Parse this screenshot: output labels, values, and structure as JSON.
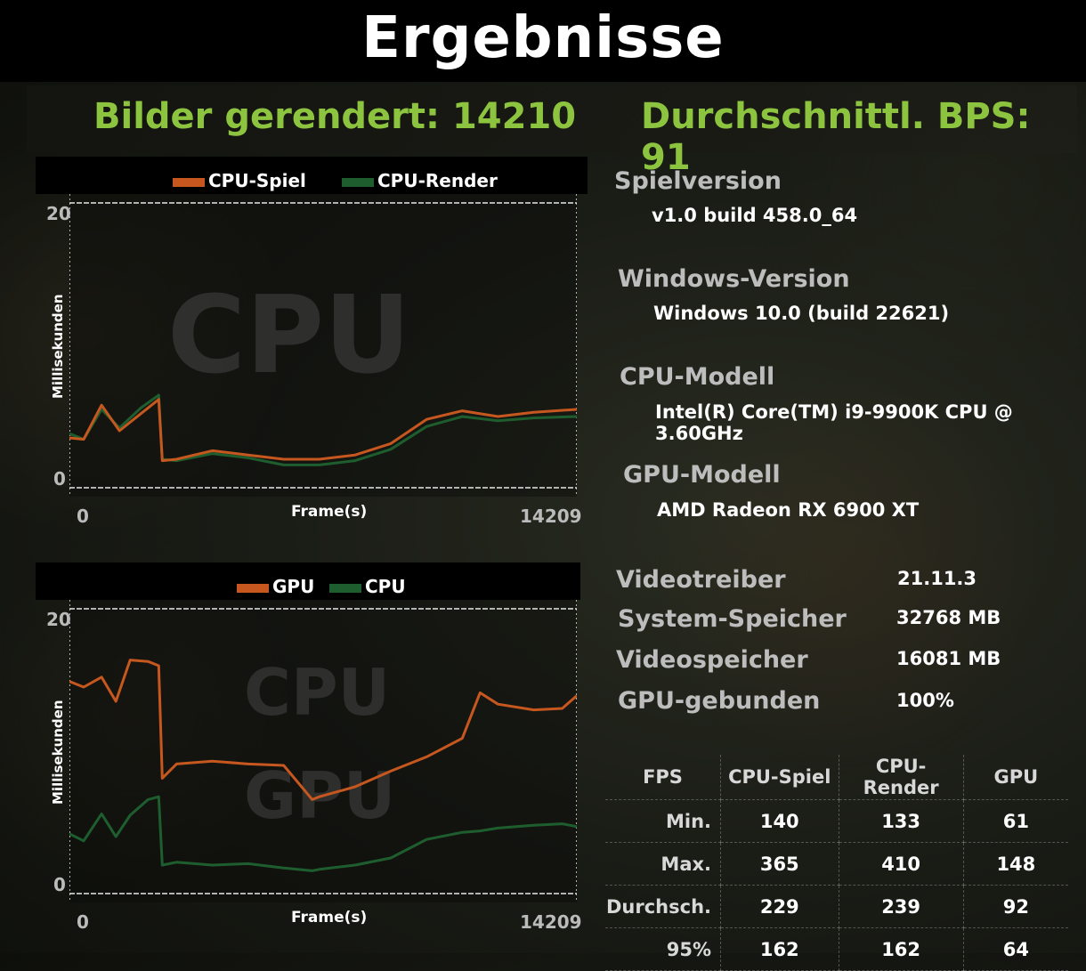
{
  "title": "Ergebnisse",
  "summary": {
    "frames_rendered": "Bilder gerendert: 14210",
    "avg_fps": "Durchschnittl. BPS: 91"
  },
  "colors": {
    "accent_green": "#8cc43f",
    "orange": "#c5571f",
    "dark_green": "#1e5e2e"
  },
  "chart1": {
    "legend": [
      "CPU-Spiel",
      "CPU-Render"
    ],
    "y_max": "20",
    "y_min": "0",
    "x_min": "0",
    "x_max": "14209",
    "xlabel": "Frame(s)",
    "ylabel": "Millisekunden",
    "watermark": "CPU"
  },
  "chart2": {
    "legend": [
      "GPU",
      "CPU"
    ],
    "y_max": "20",
    "y_min": "0",
    "x_min": "0",
    "x_max": "14209",
    "xlabel": "Frame(s)",
    "ylabel": "Millisekunden",
    "watermark_top": "CPU",
    "watermark_bottom": "GPU"
  },
  "chart_data": [
    {
      "type": "line",
      "ylabel": "Millisekunden",
      "xlabel": "Frame(s)",
      "ylim": [
        0,
        20
      ],
      "xlim": [
        0,
        14209
      ],
      "x": [
        0,
        400,
        900,
        1400,
        2000,
        2500,
        2600,
        3000,
        4000,
        5000,
        6000,
        7000,
        8000,
        9000,
        10000,
        11000,
        12000,
        13000,
        14209
      ],
      "series": [
        {
          "name": "CPU-Spiel",
          "values": [
            3.5,
            3.4,
            5.8,
            4.0,
            5.2,
            6.2,
            1.9,
            2.0,
            2.6,
            2.3,
            2.0,
            2.0,
            2.3,
            3.1,
            4.8,
            5.4,
            5.0,
            5.3,
            5.5
          ]
        },
        {
          "name": "CPU-Render",
          "values": [
            3.8,
            3.4,
            5.5,
            4.2,
            5.6,
            6.5,
            2.0,
            1.9,
            2.4,
            2.1,
            1.6,
            1.6,
            1.9,
            2.7,
            4.3,
            5.0,
            4.7,
            4.9,
            5.0
          ]
        }
      ]
    },
    {
      "type": "line",
      "ylabel": "Millisekunden",
      "xlabel": "Frame(s)",
      "ylim": [
        0,
        20
      ],
      "xlim": [
        0,
        14209
      ],
      "x": [
        0,
        400,
        900,
        1300,
        1700,
        2200,
        2500,
        2600,
        3000,
        4000,
        5000,
        6000,
        6800,
        7000,
        8000,
        9000,
        10000,
        11000,
        11500,
        12000,
        13000,
        13800,
        14209
      ],
      "series": [
        {
          "name": "GPU",
          "values": [
            14.9,
            14.5,
            15.2,
            13.5,
            16.4,
            16.3,
            16.0,
            8.1,
            9.1,
            9.3,
            9.1,
            9.0,
            6.6,
            6.8,
            7.5,
            8.6,
            9.6,
            10.9,
            14.1,
            13.3,
            12.9,
            13.0,
            13.9
          ]
        },
        {
          "name": "CPU",
          "values": [
            4.2,
            3.7,
            5.6,
            4.0,
            5.5,
            6.6,
            6.8,
            2.0,
            2.2,
            2.0,
            2.1,
            1.8,
            1.6,
            1.7,
            2.0,
            2.5,
            3.8,
            4.3,
            4.4,
            4.6,
            4.8,
            4.9,
            4.7
          ]
        }
      ]
    }
  ],
  "info": {
    "game_version_label": "Spielversion",
    "game_version_value": "v1.0 build 458.0_64",
    "windows_label": "Windows-Version",
    "windows_value": "Windows 10.0 (build 22621)",
    "cpu_label": "CPU-Modell",
    "cpu_value": "Intel(R) Core(TM) i9-9900K CPU @ 3.60GHz",
    "gpu_label": "GPU-Modell",
    "gpu_value": "AMD Radeon RX 6900 XT",
    "driver_label": "Videotreiber",
    "driver_value": "21.11.3",
    "sysmem_label": "System-Speicher",
    "sysmem_value": "32768 MB",
    "vram_label": "Videospeicher",
    "vram_value": "16081 MB",
    "gpubound_label": "GPU-gebunden",
    "gpubound_value": "100%"
  },
  "stats": {
    "headers": [
      "FPS",
      "CPU-Spiel",
      "CPU-Render",
      "GPU"
    ],
    "rows": [
      [
        "Min.",
        "140",
        "133",
        "61"
      ],
      [
        "Max.",
        "365",
        "410",
        "148"
      ],
      [
        "Durchsch.",
        "229",
        "239",
        "92"
      ],
      [
        "95%",
        "162",
        "162",
        "64"
      ]
    ]
  }
}
